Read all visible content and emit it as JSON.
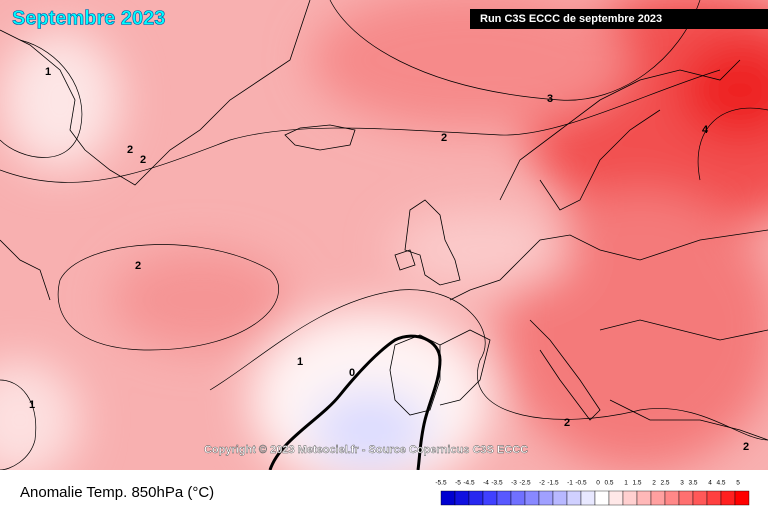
{
  "map": {
    "title": "Septembre 2023",
    "run_label": "Run C3S ECCC de septembre 2023",
    "copyright": "Copyright © 2023 Meteociel.fr - Source Copernicus C3S ECCC",
    "footer_label": "Anomalie Temp. 850hPa (°C)",
    "contour_labels": [
      1,
      2,
      2,
      2,
      3,
      2,
      4,
      1,
      0,
      1,
      2,
      2
    ],
    "legend": {
      "ticks": [
        -5.5,
        -5,
        -4.5,
        -4,
        -3.5,
        -3,
        -2.5,
        -2,
        -1.5,
        -1,
        -0.5,
        0,
        0.5,
        1,
        1.5,
        2,
        2.5,
        3,
        3.5,
        4,
        4.5,
        5
      ],
      "colors": [
        "#0000d0",
        "#1010e0",
        "#2828f0",
        "#4040ff",
        "#5858ff",
        "#7070ff",
        "#8888ff",
        "#a0a0ff",
        "#b8b8ff",
        "#d0d0ff",
        "#e8e8ff",
        "#ffffff",
        "#ffe8e8",
        "#ffd0d0",
        "#ffb8b8",
        "#ffa0a0",
        "#ff8888",
        "#ff7070",
        "#ff5858",
        "#ff4040",
        "#ff2020",
        "#ff0000"
      ]
    }
  }
}
